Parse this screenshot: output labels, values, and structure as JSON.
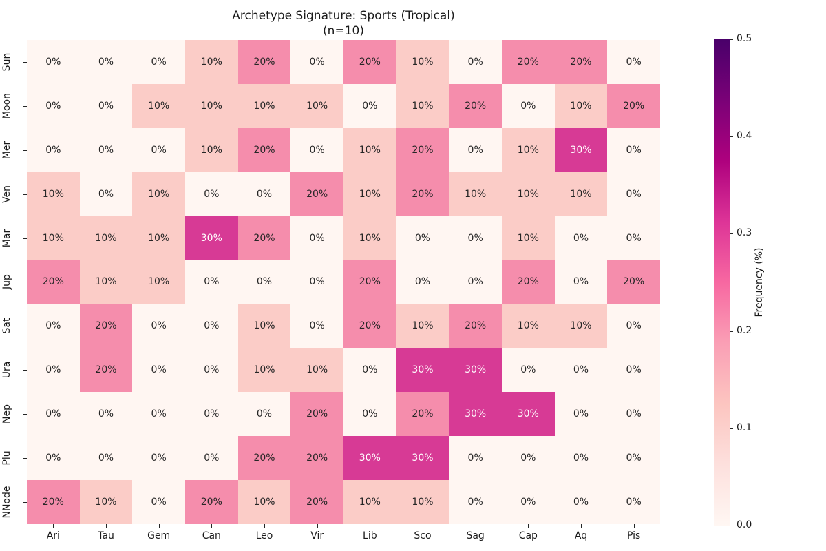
{
  "title": "Archetype Signature: Sports (Tropical)",
  "subtitle": "(n=10)",
  "chart_data": {
    "type": "heatmap",
    "title": "Archetype Signature: Sports (Tropical)",
    "subtitle": "(n=10)",
    "x_categories": [
      "Ari",
      "Tau",
      "Gem",
      "Can",
      "Leo",
      "Vir",
      "Lib",
      "Sco",
      "Sag",
      "Cap",
      "Aq",
      "Pis"
    ],
    "y_categories": [
      "Sun",
      "Moon",
      "Mer",
      "Ven",
      "Mar",
      "Jup",
      "Sat",
      "Ura",
      "Nep",
      "Plu",
      "NNode"
    ],
    "values_percent": [
      [
        0,
        0,
        0,
        10,
        20,
        0,
        20,
        10,
        0,
        20,
        20,
        0
      ],
      [
        0,
        0,
        10,
        10,
        10,
        10,
        0,
        10,
        20,
        0,
        10,
        20
      ],
      [
        0,
        0,
        0,
        10,
        20,
        0,
        10,
        20,
        0,
        10,
        30,
        0
      ],
      [
        10,
        0,
        10,
        0,
        0,
        20,
        10,
        20,
        10,
        10,
        10,
        0
      ],
      [
        10,
        10,
        10,
        30,
        20,
        0,
        10,
        0,
        0,
        10,
        0,
        0
      ],
      [
        20,
        10,
        10,
        0,
        0,
        0,
        20,
        0,
        0,
        20,
        0,
        20
      ],
      [
        0,
        20,
        0,
        0,
        10,
        0,
        20,
        10,
        20,
        10,
        10,
        0
      ],
      [
        0,
        20,
        0,
        0,
        10,
        10,
        0,
        30,
        30,
        0,
        0,
        0
      ],
      [
        0,
        0,
        0,
        0,
        0,
        20,
        0,
        20,
        30,
        30,
        0,
        0
      ],
      [
        0,
        0,
        0,
        0,
        20,
        20,
        30,
        30,
        0,
        0,
        0,
        0
      ],
      [
        20,
        10,
        0,
        20,
        10,
        20,
        10,
        10,
        0,
        0,
        0,
        0
      ]
    ],
    "cell_label_format": "{v}%",
    "cell_colors": {
      "0": "#fff6f2",
      "10": "#fbccc7",
      "20": "#f58dac",
      "30": "#d73a95"
    },
    "cell_text_dark": "#262626",
    "cell_text_light": "#ffffff",
    "colorbar": {
      "label": "Frequency (%)",
      "vmin": 0.0,
      "vmax": 0.5,
      "ticks": [
        "0.5",
        "0.4",
        "0.3",
        "0.2",
        "0.1",
        "0.0"
      ],
      "colormap": "RdPu",
      "gradient_bottom_to_top": [
        "#fff7f3",
        "#fde0dd",
        "#fcc5c0",
        "#fa9fb5",
        "#f768a1",
        "#dd3497",
        "#ae017e",
        "#7a0177",
        "#49006a"
      ]
    },
    "grid": false,
    "legend_position": "right-colorbar"
  }
}
